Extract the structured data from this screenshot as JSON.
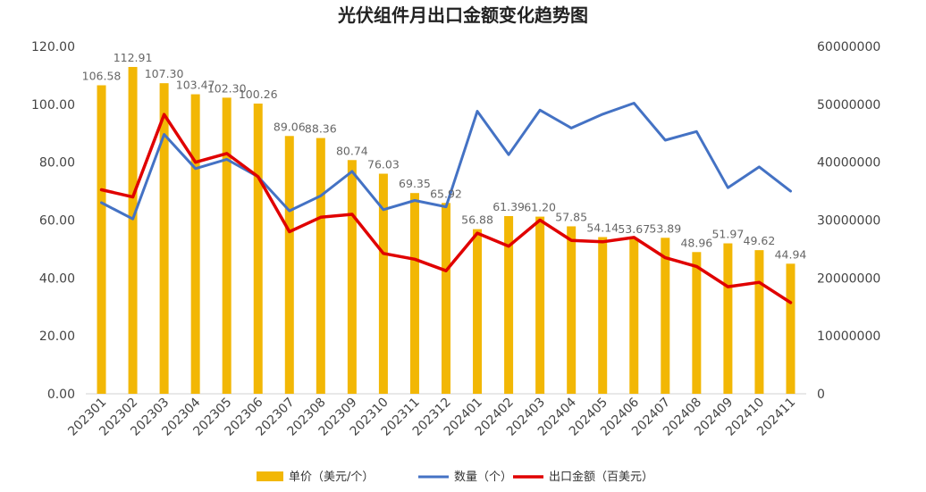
{
  "chart_data": {
    "type": "bar",
    "title": "光伏组件月出口金额变化趋势图",
    "categories": [
      "202301",
      "202302",
      "202303",
      "202304",
      "202305",
      "202306",
      "202307",
      "202308",
      "202309",
      "202310",
      "202311",
      "202312",
      "202401",
      "202402",
      "202403",
      "202404",
      "202405",
      "202406",
      "202407",
      "202408",
      "202409",
      "202410",
      "202411"
    ],
    "series": [
      {
        "name": "单价（美元/个）",
        "type": "bar",
        "axis": "left",
        "color": "#F2B705",
        "values": [
          106.58,
          112.91,
          107.3,
          103.47,
          102.3,
          100.26,
          89.06,
          88.36,
          80.74,
          76.03,
          69.35,
          65.92,
          56.88,
          61.39,
          61.2,
          57.85,
          54.14,
          53.67,
          53.89,
          48.96,
          51.97,
          49.62,
          44.94
        ]
      },
      {
        "name": "数量（个）",
        "type": "line",
        "axis": "right",
        "color": "#4472C4",
        "values": [
          33000000,
          30200000,
          44800000,
          38900000,
          40500000,
          37500000,
          31600000,
          34200000,
          38400000,
          31800000,
          33400000,
          32300000,
          48800000,
          41300000,
          49000000,
          45900000,
          48300000,
          50200000,
          43800000,
          45300000,
          35600000,
          39200000,
          35000000
        ]
      },
      {
        "name": "出口金额（百美元）",
        "type": "line",
        "axis": "left",
        "color": "#E00000",
        "values": [
          70.5,
          68.0,
          96.5,
          80.0,
          83.0,
          75.0,
          56.0,
          61.0,
          62.0,
          48.5,
          46.5,
          42.5,
          55.5,
          51.0,
          60.0,
          53.0,
          52.5,
          54.0,
          47.0,
          44.0,
          37.0,
          38.5,
          31.5
        ]
      }
    ],
    "y_left": {
      "ylim": [
        0,
        120
      ],
      "ticks": [
        "0.00",
        "20.00",
        "40.00",
        "60.00",
        "80.00",
        "100.00",
        "120.00"
      ]
    },
    "y_right": {
      "ylim": [
        0,
        60000000
      ],
      "ticks": [
        "0",
        "10000000",
        "20000000",
        "30000000",
        "40000000",
        "50000000",
        "60000000"
      ]
    },
    "data_labels": [
      "106.58",
      "112.91",
      "107.30",
      "103.47",
      "102.30",
      "100.26",
      "89.06",
      "88.36",
      "80.74",
      "76.03",
      "69.35",
      "65.92",
      "56.88",
      "61.39",
      "61.20",
      "57.85",
      "54.14",
      "53.67",
      "53.89",
      "48.96",
      "51.97",
      "49.62",
      "44.94"
    ],
    "grid": false,
    "legend_position": "bottom"
  }
}
